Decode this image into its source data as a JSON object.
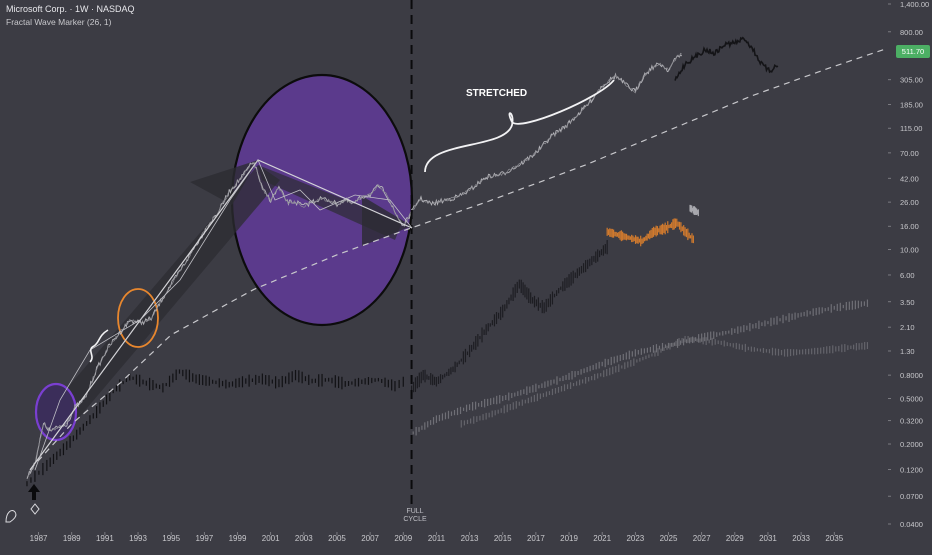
{
  "header": {
    "title": "Microsoft Corp. · 1W · NASDAQ",
    "indicator": "Fractal Wave Marker (26, 1)"
  },
  "annotations": {
    "stretched": "STRETCHED",
    "full_cycle_line1": "FULL",
    "full_cycle_line2": "CYCLE"
  },
  "colors": {
    "background": "#3c3c44",
    "purple": "#5b3a8c",
    "orange": "#e8872e",
    "price_tag": "#4caf64"
  },
  "chart_data": {
    "type": "line",
    "title": "Microsoft Corp. · 1W · NASDAQ",
    "y_scale": "log",
    "ylim": [
      0.04,
      1400
    ],
    "xlim": [
      1986,
      2038
    ],
    "y_ticks": [
      "1,400.00",
      "800.00",
      "305.00",
      "185.00",
      "115.00",
      "70.00",
      "42.00",
      "26.00",
      "16.00",
      "10.00",
      "6.00",
      "3.50",
      "2.10",
      "1.30",
      "0.8000",
      "0.5000",
      "0.3200",
      "0.2000",
      "0.1200",
      "0.0700",
      "0.0400"
    ],
    "x_ticks": [
      "1987",
      "1989",
      "1991",
      "1993",
      "1995",
      "1997",
      "1999",
      "2001",
      "2003",
      "2005",
      "2007",
      "2009",
      "2011",
      "2013",
      "2015",
      "2017",
      "2019",
      "2021",
      "2023",
      "2025",
      "2027",
      "2029",
      "2031",
      "2033",
      "2035"
    ],
    "last_price": "511.70",
    "full_cycle_date": 2009.5,
    "series": [
      {
        "key": "price",
        "x": [
          1986.3,
          1986.8,
          1987.3,
          1987.7,
          1988.2,
          1988.7,
          1989.2,
          1989.8,
          1990.5,
          1991.2,
          1991.8,
          1992.5,
          1993.2,
          1993.8,
          1994.5,
          1995.2,
          1995.8,
          1996.5,
          1997.2,
          1997.8,
          1998.5,
          1999.2,
          1999.7,
          2000.0,
          2000.5,
          2001.0,
          2001.5,
          2002.0,
          2002.5,
          2003.0,
          2003.5,
          2004.0,
          2004.5,
          2005.0,
          2005.5,
          2006.0,
          2006.5,
          2007.0,
          2007.5,
          2007.9,
          2008.5,
          2009.0,
          2009.3,
          2010.0,
          2010.7,
          2011.5,
          2012.3,
          2013.0,
          2014.0,
          2015.0,
          2016.0,
          2017.0,
          2018.0,
          2018.8,
          2019.5,
          2020.2,
          2021.0,
          2021.8,
          2022.5,
          2023.0,
          2023.5,
          2024.0,
          2024.5,
          2025.0,
          2025.5,
          2025.8
        ],
        "y": [
          0.1,
          0.14,
          0.3,
          0.26,
          0.28,
          0.3,
          0.42,
          0.5,
          0.9,
          1.4,
          1.8,
          2.4,
          2.3,
          2.5,
          3.8,
          5.5,
          7.5,
          11,
          16,
          21,
          32,
          42,
          53,
          58,
          34,
          27,
          35,
          26,
          26,
          24,
          26,
          28,
          27,
          25,
          27,
          25,
          29,
          30,
          36,
          32,
          21,
          16,
          19,
          28,
          25,
          27,
          29,
          33,
          43,
          46,
          55,
          70,
          100,
          120,
          150,
          190,
          270,
          330,
          270,
          240,
          330,
          390,
          420,
          370,
          480,
          511.7
        ]
      },
      {
        "key": "projection",
        "x": [
          2025.4,
          2026.0,
          2026.6,
          2027.2,
          2027.8,
          2028.4,
          2029.0,
          2029.6,
          2030.1,
          2030.6,
          2031.1,
          2031.6
        ],
        "y": [
          300,
          420,
          480,
          560,
          520,
          620,
          640,
          700,
          560,
          420,
          360,
          420
        ]
      },
      {
        "key": "middle_fractal",
        "x": [
          2009.5,
          2010.2,
          2011.0,
          2012.0,
          2013.0,
          2014.0,
          2015.0,
          2016.0,
          2016.8,
          2017.5,
          2018.5,
          2019.5,
          2020.5,
          2021.3
        ],
        "y": [
          0.6,
          0.8,
          0.7,
          0.9,
          1.3,
          2.0,
          2.9,
          5.0,
          3.6,
          3.1,
          4.6,
          6.2,
          8.3,
          10.5
        ]
      },
      {
        "key": "orange_fractal",
        "x": [
          2021.3,
          2022.0,
          2022.7,
          2023.4,
          2024.1,
          2024.8,
          2025.5,
          2026.0,
          2026.5
        ],
        "y": [
          14.3,
          13.4,
          12.6,
          11.8,
          14.3,
          15.3,
          17.2,
          14.3,
          12.3
        ]
      },
      {
        "key": "gray_fractal",
        "x": [
          2026.3,
          2026.8
        ],
        "y": [
          23,
          21
        ]
      },
      {
        "key": "dark_1990s",
        "x": [
          1986.3,
          1987.5,
          1988.5,
          1989.5,
          1990.5,
          1991.5,
          1992.5,
          1993.5,
          1994.5,
          1995.5,
          1996.5,
          1997.5,
          1998.5,
          1999.5,
          2000.5,
          2001.5,
          2002.5,
          2003.5,
          2004.5,
          2005.5,
          2006.5,
          2007.5,
          2008.5,
          2009.0
        ],
        "y": [
          0.09,
          0.13,
          0.18,
          0.26,
          0.38,
          0.58,
          0.77,
          0.68,
          0.62,
          0.86,
          0.74,
          0.7,
          0.66,
          0.71,
          0.74,
          0.68,
          0.8,
          0.71,
          0.73,
          0.67,
          0.7,
          0.73,
          0.64,
          0.7
        ]
      },
      {
        "key": "faint_a",
        "x": [
          2009.6,
          2011.0,
          2013.0,
          2015.0,
          2017.0,
          2019.0,
          2021.0,
          2023.0,
          2025.0,
          2027.0,
          2029.0,
          2031.0,
          2033.0,
          2035.0,
          2037.0
        ],
        "y": [
          0.25,
          0.33,
          0.42,
          0.5,
          0.62,
          0.78,
          1.0,
          1.25,
          1.45,
          1.7,
          1.95,
          2.3,
          2.7,
          3.1,
          3.4
        ]
      },
      {
        "key": "faint_b",
        "x": [
          2012.5,
          2014.0,
          2016.0,
          2018.0,
          2020.0,
          2022.0,
          2024.0,
          2026.0,
          2028.0,
          2030.0,
          2032.0,
          2034.0,
          2036.0,
          2037.0
        ],
        "y": [
          0.3,
          0.35,
          0.45,
          0.57,
          0.72,
          0.92,
          1.2,
          1.65,
          1.55,
          1.35,
          1.25,
          1.3,
          1.4,
          1.45
        ]
      },
      {
        "key": "trend",
        "x": [
          1986.5,
          1989,
          1992,
          1995,
          2000,
          2005,
          2009.5,
          2014,
          2020,
          2025,
          2030,
          2035,
          2038
        ],
        "y": [
          0.12,
          0.3,
          0.7,
          1.8,
          4.5,
          9,
          15.5,
          26,
          55,
          110,
          220,
          400,
          560
        ]
      }
    ]
  }
}
